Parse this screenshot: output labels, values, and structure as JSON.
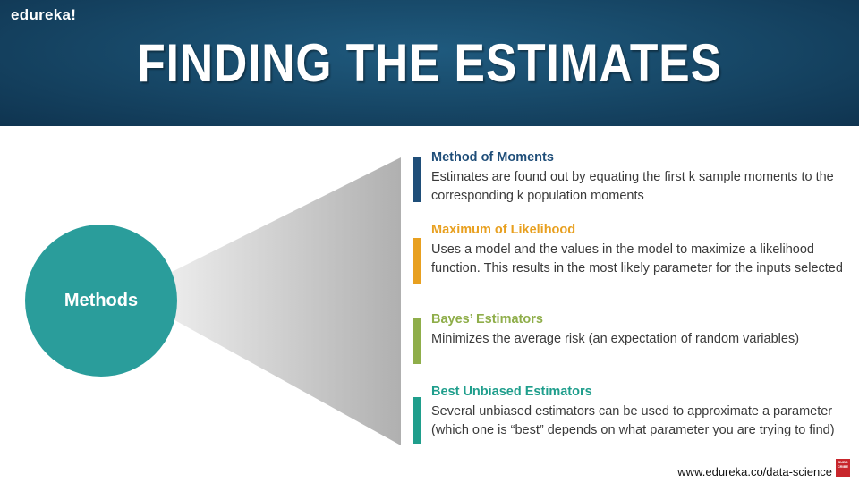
{
  "brand": {
    "logo_text": "edureka!"
  },
  "slide": {
    "title": "FINDING THE ESTIMATES"
  },
  "diagram": {
    "center_label": "Methods"
  },
  "methods": [
    {
      "title": "Method of Moments",
      "description": "Estimates are found out by equating the first k sample moments to the corresponding k population moments",
      "color": "#1f4e79"
    },
    {
      "title": "Maximum of Likelihood",
      "description": "Uses a model and the values in the model to maximize a likelihood function. This results in the most likely parameter for the inputs selected",
      "color": "#e8a020"
    },
    {
      "title": "Bayes’ Estimators",
      "description": "Minimizes the average risk (an expectation of random variables)",
      "color": "#8fae4a"
    },
    {
      "title": "Best Unbiased Estimators",
      "description": "Several unbiased estimators can be used to approximate a parameter (which one is “best” depends on what parameter you are trying to find)",
      "color": "#1f9e8c"
    }
  ],
  "footer": {
    "url": "www.edureka.co/data-science",
    "badge_text": "SUBS CRIBE"
  }
}
